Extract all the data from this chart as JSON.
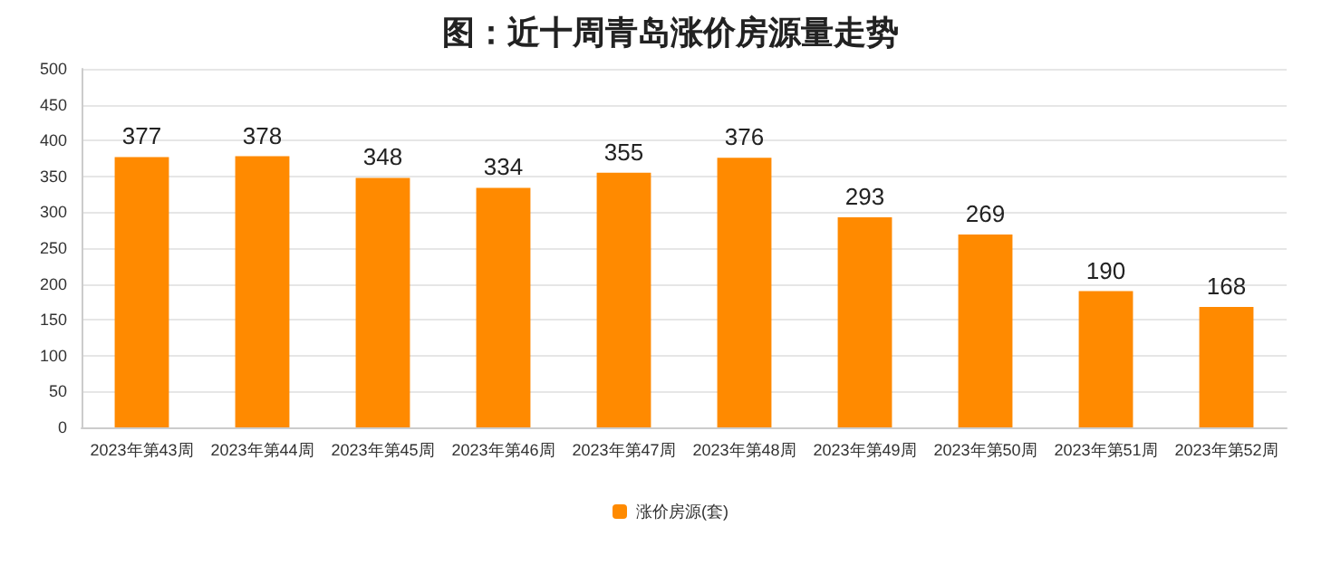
{
  "chart_data": {
    "type": "bar",
    "title": "图：近十周青岛涨价房源量走势",
    "categories": [
      "2023年第43周",
      "2023年第44周",
      "2023年第45周",
      "2023年第46周",
      "2023年第47周",
      "2023年第48周",
      "2023年第49周",
      "2023年第50周",
      "2023年第51周",
      "2023年第52周"
    ],
    "series": [
      {
        "name": "涨价房源(套)",
        "color": "#ff8a00",
        "values": [
          377,
          378,
          348,
          334,
          355,
          376,
          293,
          269,
          190,
          168
        ]
      }
    ],
    "ylim": [
      0,
      500
    ],
    "yticks": [
      0,
      50,
      100,
      150,
      200,
      250,
      300,
      350,
      400,
      450,
      500
    ],
    "grid": "y",
    "legend": "bottom",
    "data_labels": true
  }
}
